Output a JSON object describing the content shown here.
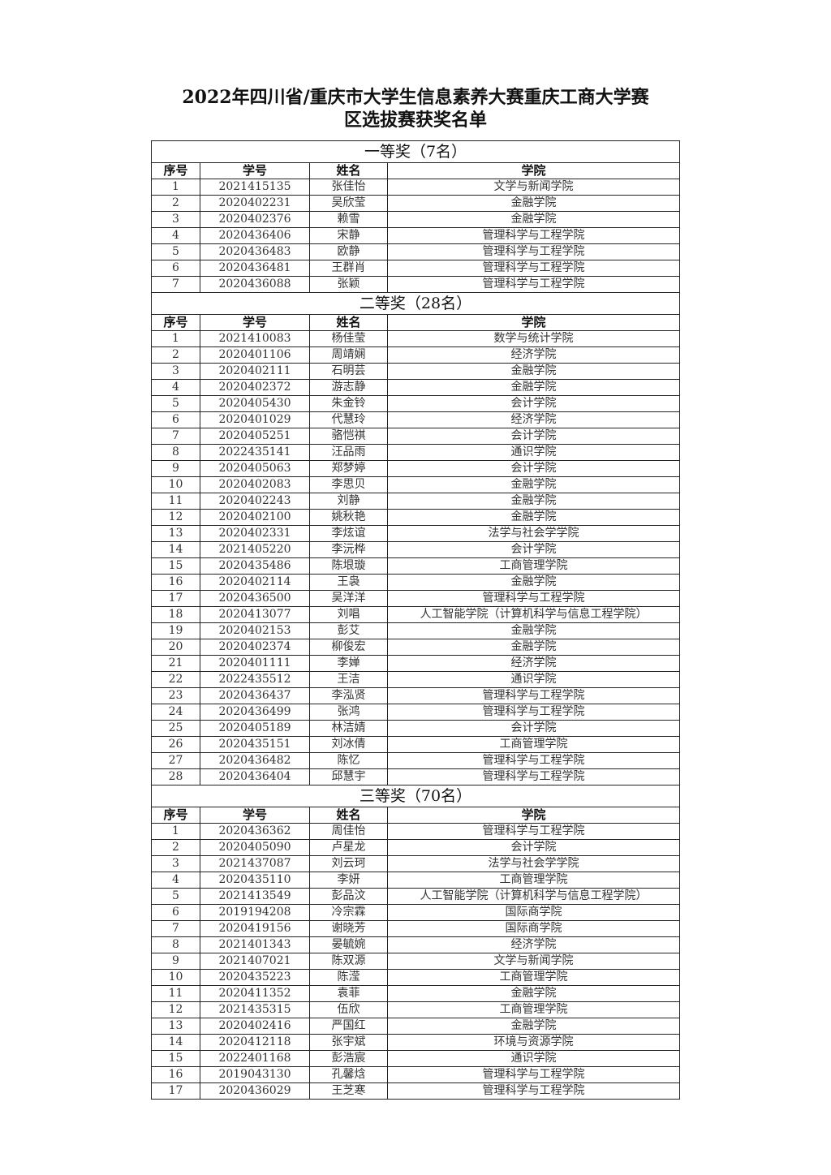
{
  "title": {
    "line1": "2022年四川省/重庆市大学生信息素养大赛重庆工商大学赛",
    "line2": "区选拔赛获奖名单"
  },
  "columns": [
    "序号",
    "学号",
    "姓名",
    "学院"
  ],
  "sections": [
    {
      "heading": "一等奖（7名）",
      "rows": [
        [
          "1",
          "2021415135",
          "张佳怡",
          "文学与新闻学院"
        ],
        [
          "2",
          "2020402231",
          "吴欣莹",
          "金融学院"
        ],
        [
          "3",
          "2020402376",
          "赖雪",
          "金融学院"
        ],
        [
          "4",
          "2020436406",
          "宋静",
          "管理科学与工程学院"
        ],
        [
          "5",
          "2020436483",
          "欧静",
          "管理科学与工程学院"
        ],
        [
          "6",
          "2020436481",
          "王群肖",
          "管理科学与工程学院"
        ],
        [
          "7",
          "2020436088",
          "张颖",
          "管理科学与工程学院"
        ]
      ]
    },
    {
      "heading": "二等奖（28名）",
      "rows": [
        [
          "1",
          "2021410083",
          "杨佳莹",
          "数学与统计学院"
        ],
        [
          "2",
          "2020401106",
          "周靖娴",
          "经济学院"
        ],
        [
          "3",
          "2020402111",
          "石明芸",
          "金融学院"
        ],
        [
          "4",
          "2020402372",
          "游志静",
          "金融学院"
        ],
        [
          "5",
          "2020405430",
          "朱金铃",
          "会计学院"
        ],
        [
          "6",
          "2020401029",
          "代慧玲",
          "经济学院"
        ],
        [
          "7",
          "2020405251",
          "骆恺祺",
          "会计学院"
        ],
        [
          "8",
          "2022435141",
          "汪品雨",
          "通识学院"
        ],
        [
          "9",
          "2020405063",
          "郑梦婷",
          "会计学院"
        ],
        [
          "10",
          "2020402083",
          "李思贝",
          "金融学院"
        ],
        [
          "11",
          "2020402243",
          "刘静",
          "金融学院"
        ],
        [
          "12",
          "2020402100",
          "姚秋艳",
          "金融学院"
        ],
        [
          "13",
          "2020402331",
          "李炫谊",
          "法学与社会学学院"
        ],
        [
          "14",
          "2021405220",
          "李沅桦",
          "会计学院"
        ],
        [
          "15",
          "2020435486",
          "陈垠璇",
          "工商管理学院"
        ],
        [
          "16",
          "2020402114",
          "王袅",
          "金融学院"
        ],
        [
          "17",
          "2020436500",
          "吴洋洋",
          "管理科学与工程学院"
        ],
        [
          "18",
          "2020413077",
          "刘唱",
          "人工智能学院（计算机科学与信息工程学院）"
        ],
        [
          "19",
          "2020402153",
          "彭艾",
          "金融学院"
        ],
        [
          "20",
          "2020402374",
          "柳俊宏",
          "金融学院"
        ],
        [
          "21",
          "2020401111",
          "李婵",
          "经济学院"
        ],
        [
          "22",
          "2022435512",
          "王洁",
          "通识学院"
        ],
        [
          "23",
          "2020436437",
          "李泓贤",
          "管理科学与工程学院"
        ],
        [
          "24",
          "2020436499",
          "张鸿",
          "管理科学与工程学院"
        ],
        [
          "25",
          "2020405189",
          "林洁婧",
          "会计学院"
        ],
        [
          "26",
          "2020435151",
          "刘冰倩",
          "工商管理学院"
        ],
        [
          "27",
          "2020436482",
          "陈忆",
          "管理科学与工程学院"
        ],
        [
          "28",
          "2020436404",
          "邱慧宇",
          "管理科学与工程学院"
        ]
      ]
    },
    {
      "heading": "三等奖（70名）",
      "rows": [
        [
          "1",
          "2020436362",
          "周佳怡",
          "管理科学与工程学院"
        ],
        [
          "2",
          "2020405090",
          "卢星龙",
          "会计学院"
        ],
        [
          "3",
          "2021437087",
          "刘云珂",
          "法学与社会学学院"
        ],
        [
          "4",
          "2020435110",
          "李妍",
          "工商管理学院"
        ],
        [
          "5",
          "2021413549",
          "彭品汶",
          "人工智能学院（计算机科学与信息工程学院）"
        ],
        [
          "6",
          "2019194208",
          "冷宗霖",
          "国际商学院"
        ],
        [
          "7",
          "2020419156",
          "谢晓芳",
          "国际商学院"
        ],
        [
          "8",
          "2021401343",
          "晏毓婉",
          "经济学院"
        ],
        [
          "9",
          "2021407021",
          "陈双源",
          "文学与新闻学院"
        ],
        [
          "10",
          "2020435223",
          "陈滢",
          "工商管理学院"
        ],
        [
          "11",
          "2020411352",
          "袁菲",
          "金融学院"
        ],
        [
          "12",
          "2021435315",
          "伍欣",
          "工商管理学院"
        ],
        [
          "13",
          "2020402416",
          "严国红",
          "金融学院"
        ],
        [
          "14",
          "2020412118",
          "张宇斌",
          "环境与资源学院"
        ],
        [
          "15",
          "2022401168",
          "彭浩宸",
          "通识学院"
        ],
        [
          "16",
          "2019043130",
          "孔馨焓",
          "管理科学与工程学院"
        ],
        [
          "17",
          "2020436029",
          "王芝寒",
          "管理科学与工程学院"
        ]
      ]
    }
  ]
}
